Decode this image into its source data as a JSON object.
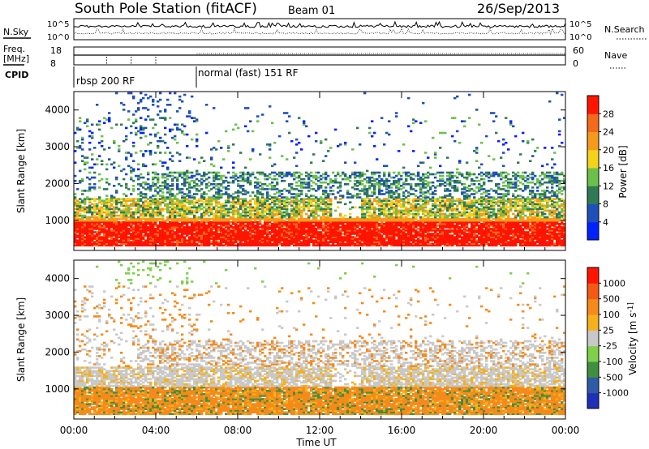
{
  "header": {
    "station": "South Pole Station (fitACF)",
    "beam": "Beam 01",
    "date": "26/Sep/2013"
  },
  "params": {
    "nsky_label": "N.Sky",
    "nsky_ticks": [
      "10^5",
      "10^0"
    ],
    "nsearch_label": "N.Search",
    "nsearch_ticks": [
      "10^5",
      "10^0"
    ],
    "freq_label_line1": "Freq.",
    "freq_label_line2": "[MHz]",
    "freq_ticks": [
      "18",
      "8"
    ],
    "nave_label": "Nave",
    "nave_ticks": [
      "60",
      "0"
    ],
    "cpid_label": "CPID",
    "cpid_segments": [
      {
        "label": "rbsp 200 RF",
        "start_hour": 0,
        "end_hour": 6
      },
      {
        "label": "normal (fast) 151 RF",
        "start_hour": 6,
        "end_hour": 24
      }
    ]
  },
  "chart_data": [
    {
      "type": "heatmap",
      "title": "",
      "xlabel": "",
      "ylabel": "Slant Range [km]",
      "x_range_hours": [
        0,
        24
      ],
      "y_range_km": [
        180,
        4500
      ],
      "yticks": [
        1000,
        2000,
        3000,
        4000
      ],
      "colorbar": {
        "label": "Power [dB]",
        "ticks": [
          "4",
          "8",
          "12",
          "16",
          "20",
          "24",
          "28"
        ],
        "colors": [
          "#0022ff",
          "#1f4fb8",
          "#2f7a55",
          "#6cc04a",
          "#f5d21a",
          "#f59a1c",
          "#f46a1a",
          "#ff1400"
        ]
      },
      "bands": [
        {
          "name": "strong near-range echoes",
          "range_km": [
            450,
            1050
          ],
          "hours": [
            0,
            24
          ],
          "level": "28"
        },
        {
          "name": "moderate band",
          "range_km": [
            1050,
            1600
          ],
          "hours": [
            0,
            24
          ],
          "level": "12-20"
        },
        {
          "name": "weak far-range echoes",
          "range_km": [
            1800,
            2200
          ],
          "hours": [
            3,
            24
          ],
          "level": "4-12"
        }
      ]
    },
    {
      "type": "heatmap",
      "title": "",
      "xlabel": "Time UT",
      "ylabel": "Slant Range [km]",
      "x_range_hours": [
        0,
        24
      ],
      "y_range_km": [
        180,
        4500
      ],
      "yticks": [
        1000,
        2000,
        3000,
        4000
      ],
      "xticks": [
        "00:00",
        "04:00",
        "08:00",
        "12:00",
        "16:00",
        "20:00",
        "00:00"
      ],
      "colorbar": {
        "label": "Velocity [m s^-1]",
        "ticks": [
          "1000",
          "500",
          "100",
          "25",
          "-25",
          "-100",
          "-500",
          "-1000"
        ],
        "colors": [
          "#1f2fb8",
          "#2f5aa8",
          "#3f8f3f",
          "#7fd04a",
          "#c8c8c8",
          "#f5b01c",
          "#f58a1a",
          "#f55a14",
          "#ff1400"
        ]
      }
    }
  ]
}
